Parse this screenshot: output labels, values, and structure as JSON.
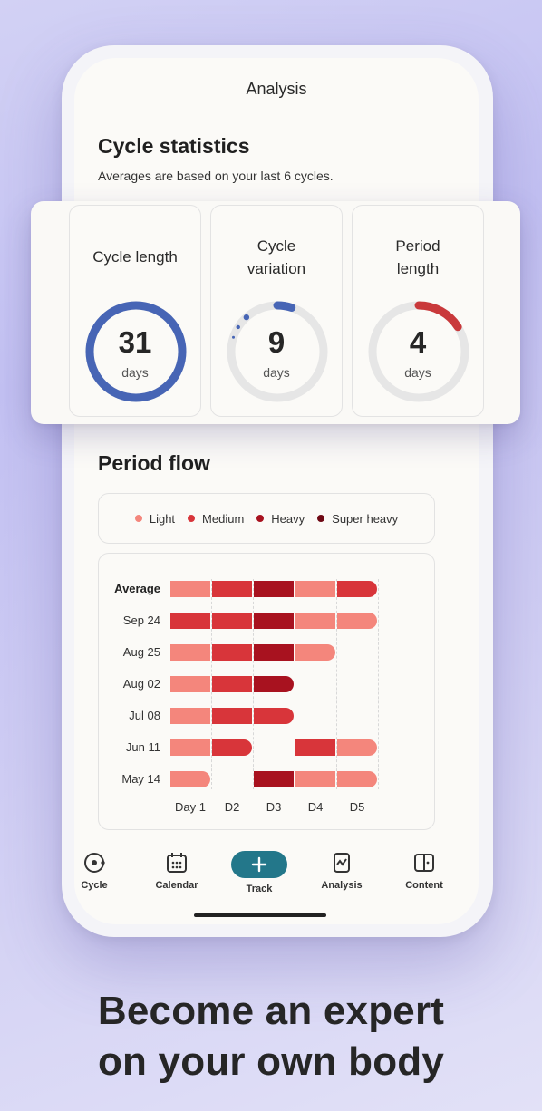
{
  "screen_title": "Analysis",
  "cycle_statistics": {
    "title": "Cycle statistics",
    "subtitle": "Averages are based on your last 6 cycles.",
    "cards": [
      {
        "label_line1": "Cycle length",
        "label_line2": "",
        "value": "31",
        "unit": "days",
        "ring_fraction": 1.0,
        "color": "#4765b5"
      },
      {
        "label_line1": "Cycle",
        "label_line2": "variation",
        "value": "9",
        "unit": "days",
        "ring_fraction": 0.05,
        "color": "#4765b5"
      },
      {
        "label_line1": "Period",
        "label_line2": "length",
        "value": "4",
        "unit": "days",
        "ring_fraction": 0.16,
        "color": "#c9393b"
      }
    ]
  },
  "period_flow": {
    "title": "Period flow",
    "legend": [
      {
        "label": "Light",
        "color": "#f4867c"
      },
      {
        "label": "Medium",
        "color": "#d8353a"
      },
      {
        "label": "Heavy",
        "color": "#a8121f"
      },
      {
        "label": "Super heavy",
        "color": "#6e0814"
      }
    ]
  },
  "chart_data": {
    "type": "heatmap",
    "categories": [
      "Average",
      "Sep 24",
      "Aug 25",
      "Aug 02",
      "Jul 08",
      "Jun 11",
      "May 14"
    ],
    "x": [
      "Day 1",
      "D2",
      "D3",
      "D4",
      "D5"
    ],
    "values": [
      [
        "Light",
        "Medium",
        "Heavy",
        "Light",
        "Medium"
      ],
      [
        "Medium",
        "Medium",
        "Heavy",
        "Light",
        "Light"
      ],
      [
        "Light",
        "Medium",
        "Heavy",
        "Light",
        null
      ],
      [
        "Light",
        "Medium",
        "Heavy",
        null,
        null
      ],
      [
        "Light",
        "Medium",
        "Medium",
        null,
        null
      ],
      [
        "Light",
        "Medium",
        null,
        "Medium",
        "Light"
      ],
      [
        "Light",
        null,
        "Heavy",
        "Light",
        "Light"
      ]
    ],
    "legend": [
      "Light",
      "Medium",
      "Heavy",
      "Super heavy"
    ],
    "legend_position": "top",
    "grid": true
  },
  "nav": {
    "items": [
      {
        "label": "Cycle",
        "icon": "cycle-icon"
      },
      {
        "label": "Calendar",
        "icon": "calendar-icon"
      },
      {
        "label": "Track",
        "icon": "plus-icon"
      },
      {
        "label": "Analysis",
        "icon": "analysis-icon"
      },
      {
        "label": "Content",
        "icon": "book-icon"
      }
    ]
  },
  "headline": {
    "line1": "Become an expert",
    "line2": "on your own body"
  },
  "colors": {
    "accent": "#23778a",
    "ring_track": "#e6e6e6"
  }
}
